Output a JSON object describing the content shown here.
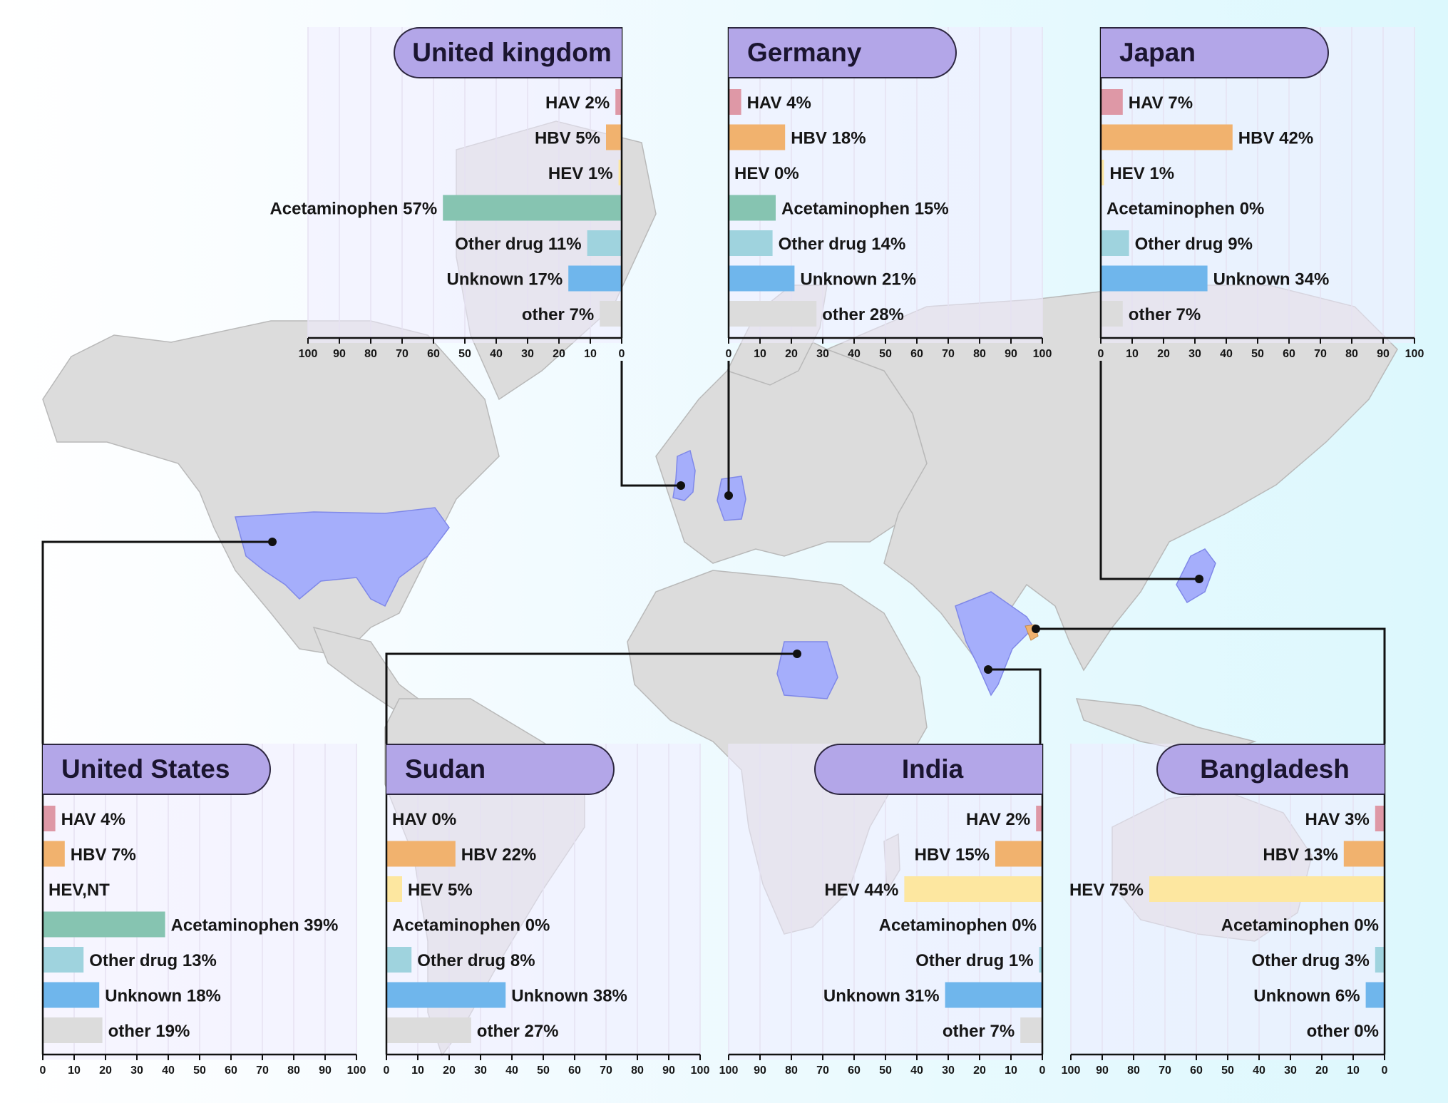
{
  "colors": {
    "HAV": "#de98a6",
    "HBV": "#f1b26e",
    "HEV": "#fde7a0",
    "Acetaminophen": "#86c4b1",
    "Other drug": "#9fd3de",
    "Unknown": "#6fb6ec",
    "other": "#dcdcdc",
    "highlight_country": "#a5aefb",
    "map_land": "#dcdcdc",
    "title_pill": "#b3a6e8"
  },
  "chart_data": [
    {
      "type": "bar",
      "title": "United kingdom",
      "orientation": "horizontal",
      "direction": "right-to-left",
      "xlim": [
        0,
        100
      ],
      "categories": [
        "HAV",
        "HBV",
        "HEV",
        "Acetaminophen",
        "Other drug",
        "Unknown",
        "other"
      ],
      "values": [
        2,
        5,
        1,
        57,
        11,
        17,
        7
      ],
      "labels": [
        "HAV 2%",
        "HBV 5%",
        "HEV 1%",
        "Acetaminophen 57%",
        "Other drug 11%",
        "Unknown 17%",
        "other 7%"
      ],
      "ticks": [
        "100",
        "90",
        "80",
        "70",
        "60",
        "50",
        "40",
        "30",
        "20",
        "10",
        "0"
      ]
    },
    {
      "type": "bar",
      "title": "Germany",
      "orientation": "horizontal",
      "direction": "left-to-right",
      "xlim": [
        0,
        100
      ],
      "categories": [
        "HAV",
        "HBV",
        "HEV",
        "Acetaminophen",
        "Other drug",
        "Unknown",
        "other"
      ],
      "values": [
        4,
        18,
        0,
        15,
        14,
        21,
        28
      ],
      "labels": [
        "HAV 4%",
        "HBV 18%",
        "HEV 0%",
        "Acetaminophen 15%",
        "Other drug 14%",
        "Unknown 21%",
        "other 28%"
      ],
      "ticks": [
        "0",
        "10",
        "20",
        "30",
        "40",
        "50",
        "60",
        "70",
        "80",
        "90",
        "100"
      ]
    },
    {
      "type": "bar",
      "title": "Japan",
      "orientation": "horizontal",
      "direction": "left-to-right",
      "xlim": [
        0,
        100
      ],
      "categories": [
        "HAV",
        "HBV",
        "HEV",
        "Acetaminophen",
        "Other drug",
        "Unknown",
        "other"
      ],
      "values": [
        7,
        42,
        1,
        0,
        9,
        34,
        7
      ],
      "labels": [
        "HAV 7%",
        "HBV 42%",
        "HEV 1%",
        "Acetaminophen 0%",
        "Other drug 9%",
        "Unknown 34%",
        "other 7%"
      ],
      "ticks": [
        "0",
        "10",
        "20",
        "30",
        "40",
        "50",
        "60",
        "70",
        "80",
        "90",
        "100"
      ]
    },
    {
      "type": "bar",
      "title": "United States",
      "orientation": "horizontal",
      "direction": "left-to-right",
      "xlim": [
        0,
        100
      ],
      "categories": [
        "HAV",
        "HBV",
        "HEV",
        "Acetaminophen",
        "Other drug",
        "Unknown",
        "other"
      ],
      "values": [
        4,
        7,
        null,
        39,
        13,
        18,
        19
      ],
      "labels": [
        "HAV 4%",
        "HBV 7%",
        "HEV,NT",
        "Acetaminophen 39%",
        "Other drug 13%",
        "Unknown 18%",
        "other 19%"
      ],
      "ticks": [
        "0",
        "10",
        "20",
        "30",
        "40",
        "50",
        "60",
        "70",
        "80",
        "90",
        "100"
      ]
    },
    {
      "type": "bar",
      "title": "Sudan",
      "orientation": "horizontal",
      "direction": "left-to-right",
      "xlim": [
        0,
        100
      ],
      "categories": [
        "HAV",
        "HBV",
        "HEV",
        "Acetaminophen",
        "Other drug",
        "Unknown",
        "other"
      ],
      "values": [
        0,
        22,
        5,
        0,
        8,
        38,
        27
      ],
      "labels": [
        "HAV 0%",
        "HBV 22%",
        "HEV 5%",
        "Acetaminophen 0%",
        "Other drug 8%",
        "Unknown 38%",
        "other 27%"
      ],
      "ticks": [
        "0",
        "10",
        "20",
        "30",
        "40",
        "50",
        "60",
        "70",
        "80",
        "90",
        "100"
      ]
    },
    {
      "type": "bar",
      "title": "India",
      "orientation": "horizontal",
      "direction": "right-to-left",
      "xlim": [
        0,
        100
      ],
      "categories": [
        "HAV",
        "HBV",
        "HEV",
        "Acetaminophen",
        "Other drug",
        "Unknown",
        "other"
      ],
      "values": [
        2,
        15,
        44,
        0,
        1,
        31,
        7
      ],
      "labels": [
        "HAV 2%",
        "HBV 15%",
        "HEV 44%",
        "Acetaminophen 0%",
        "Other drug 1%",
        "Unknown 31%",
        "other 7%"
      ],
      "ticks": [
        "100",
        "90",
        "80",
        "70",
        "60",
        "50",
        "40",
        "30",
        "20",
        "10",
        "0"
      ]
    },
    {
      "type": "bar",
      "title": "Bangladesh",
      "orientation": "horizontal",
      "direction": "right-to-left",
      "xlim": [
        0,
        100
      ],
      "categories": [
        "HAV",
        "HBV",
        "HEV",
        "Acetaminophen",
        "Other drug",
        "Unknown",
        "other"
      ],
      "values": [
        3,
        13,
        75,
        0,
        3,
        6,
        0
      ],
      "labels": [
        "HAV 3%",
        "HBV 13%",
        "HEV 75%",
        "Acetaminophen 0%",
        "Other drug 3%",
        "Unknown 6%",
        "other 0%"
      ],
      "ticks": [
        "100",
        "90",
        "80",
        "70",
        "60",
        "50",
        "40",
        "30",
        "20",
        "10",
        "0"
      ]
    }
  ]
}
